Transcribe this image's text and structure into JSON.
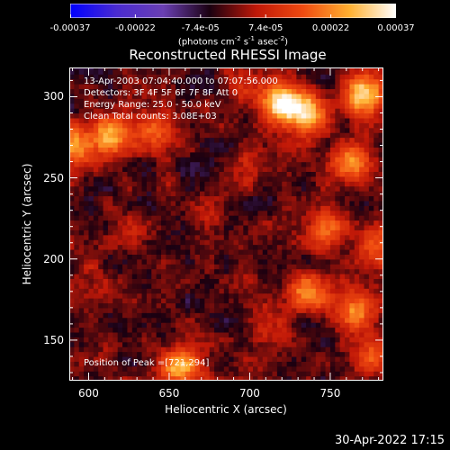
{
  "colors": {
    "background": "#000000",
    "text": "#ffffff",
    "colormap": [
      "#0000ff",
      "#4a2bd0",
      "#6a3fb3",
      "#1a0010",
      "#c01808",
      "#f04a10",
      "#ffb030",
      "#ffffff"
    ]
  },
  "colorbar": {
    "ticks": [
      "-0.00037",
      "-0.00022",
      "-7.4e-05",
      "7.4e-05",
      "0.00022",
      "0.00037"
    ],
    "units_prefix": "(photons cm",
    "units_sup1": "-2",
    "units_mid1": " s",
    "units_sup2": "-1",
    "units_mid2": " asec",
    "units_sup3": "-2",
    "units_suffix": ")"
  },
  "chart_data": {
    "type": "heatmap",
    "title": "Reconstructed RHESSI Image",
    "xlabel": "Heliocentric X (arcsec)",
    "ylabel": "Heliocentric Y (arcsec)",
    "xlim": [
      588,
      783
    ],
    "ylim": [
      125,
      318
    ],
    "xticks": [
      600,
      650,
      700,
      750
    ],
    "yticks": [
      150,
      200,
      250,
      300
    ],
    "xtick_labels": [
      "600",
      "650",
      "700",
      "750"
    ],
    "ytick_labels": [
      "150",
      "200",
      "250",
      "300"
    ],
    "value_range": [
      -0.00037,
      0.00037
    ],
    "annotations": [
      "13-Apr-2003 07:04:40.000 to 07:07:56.000",
      "Detectors: 3F 4F 5F 6F 7F 8F  Att 0",
      "Energy Range: 25.0 - 50.0 keV",
      "Clean      Total counts: 3.08E+03"
    ],
    "peak_text": "Position of Peak =[721,294]",
    "peak": [
      721,
      294
    ],
    "bright_regions": [
      {
        "x": 719,
        "y": 297,
        "value": 0.00037
      },
      {
        "x": 737,
        "y": 290,
        "value": 0.0003
      },
      {
        "x": 770,
        "y": 302,
        "value": 0.00033
      },
      {
        "x": 763,
        "y": 260,
        "value": 0.00028
      },
      {
        "x": 592,
        "y": 270,
        "value": 0.00026
      },
      {
        "x": 614,
        "y": 277,
        "value": 0.00024
      },
      {
        "x": 642,
        "y": 277,
        "value": 0.00016
      },
      {
        "x": 658,
        "y": 134,
        "value": 0.00032
      },
      {
        "x": 735,
        "y": 180,
        "value": 0.00025
      },
      {
        "x": 765,
        "y": 168,
        "value": 0.00027
      },
      {
        "x": 775,
        "y": 140,
        "value": 0.00022
      },
      {
        "x": 748,
        "y": 218,
        "value": 0.00018
      },
      {
        "x": 695,
        "y": 305,
        "value": 0.00014
      },
      {
        "x": 675,
        "y": 230,
        "value": 0.00012
      },
      {
        "x": 630,
        "y": 215,
        "value": 0.0001
      },
      {
        "x": 710,
        "y": 160,
        "value": 0.00012
      },
      {
        "x": 602,
        "y": 185,
        "value": 9e-05
      },
      {
        "x": 780,
        "y": 210,
        "value": 0.0002
      },
      {
        "x": 700,
        "y": 260,
        "value": 0.0001
      }
    ]
  },
  "timestamp": "30-Apr-2022 17:15"
}
